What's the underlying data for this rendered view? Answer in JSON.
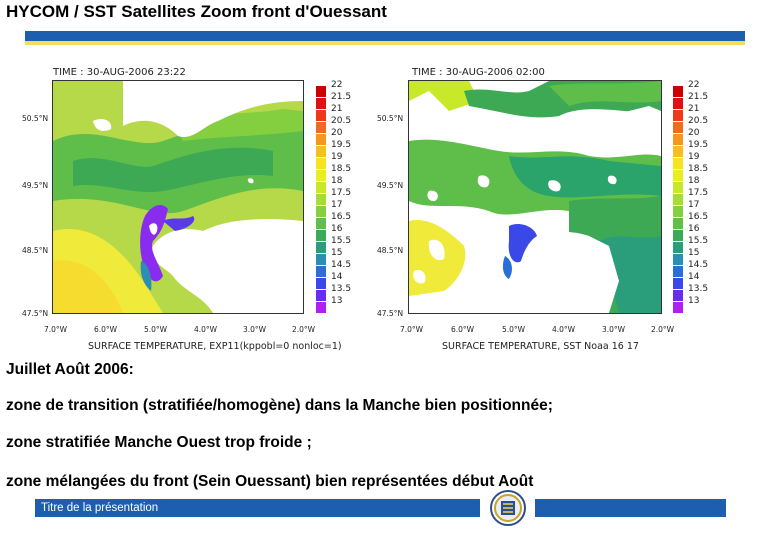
{
  "header": {
    "title": "HYCOM /  SST Satellites  Zoom front d'Ouessant"
  },
  "maps": [
    {
      "time_label": "TIME : 30-AUG-2006 23:22",
      "caption": "SURFACE TEMPERATURE, EXP11(kppobl=0 nonloc=1)"
    },
    {
      "time_label": "TIME : 30-AUG-2006 02:00",
      "caption": "SURFACE TEMPERATURE, SST Noaa 16 17"
    }
  ],
  "lat_labels": [
    "50.5°N",
    "49.5°N",
    "48.5°N",
    "47.5°N"
  ],
  "lon_labels": [
    "7.0°W",
    "6.0°W",
    "5.0°W",
    "4.0°W",
    "3.0°W",
    "2.0°W"
  ],
  "legend": {
    "labels": [
      "22",
      "21.5",
      "21",
      "20.5",
      "20",
      "19.5",
      "19",
      "18.5",
      "18",
      "17.5",
      "17",
      "16.5",
      "16",
      "15.5",
      "15",
      "14.5",
      "14",
      "13.5",
      "13"
    ],
    "colors": [
      "#cc0000",
      "#e01010",
      "#ee3a1a",
      "#f26a1e",
      "#f5961f",
      "#f7be20",
      "#f9e321",
      "#e8ee22",
      "#c8e82a",
      "#a6dd35",
      "#84d040",
      "#5fc048",
      "#3daa55",
      "#2a9e7a",
      "#2a8fb0",
      "#2a6fd8",
      "#3a48e8",
      "#6a2af0",
      "#b01ef0"
    ]
  },
  "body": {
    "heading": "Juillet Août 2006:",
    "line1": "zone de transition (stratifiée/homogène) dans la Manche bien positionnée;",
    "line2": "zone stratifiée Manche Ouest trop froide ;",
    "line3": "zone mélangées du front (Sein Ouessant) bien représentées début Août"
  },
  "footer": {
    "label": "Titre de la présentation",
    "logo_icon": "emblem-icon"
  }
}
